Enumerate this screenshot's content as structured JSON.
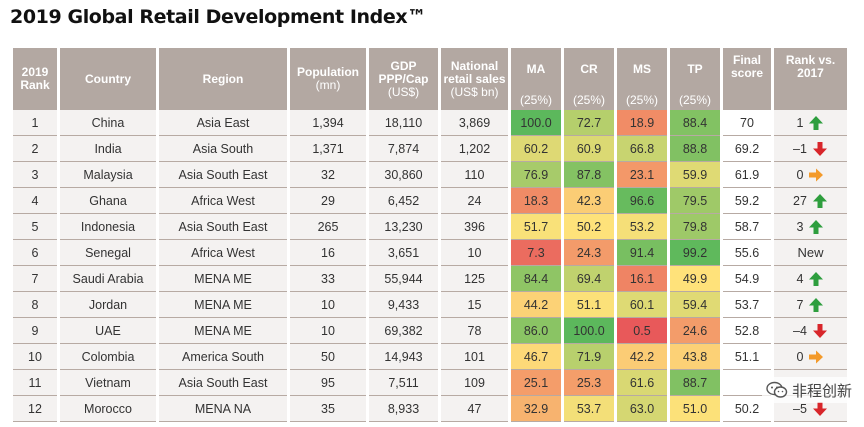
{
  "title": "2019 Global Retail Development Index™",
  "headers": {
    "rank": "2019 Rank",
    "country": "Country",
    "region": "Region",
    "population": "Population",
    "population_unit": "(mn)",
    "gdp": "GDP PPP/Cap",
    "gdp_unit": "(US$)",
    "sales": "National retail sales",
    "sales_unit": "(US$ bn)",
    "ma": "MA",
    "cr": "CR",
    "ms": "MS",
    "tp": "TP",
    "weight": "(25%)",
    "score": "Final score",
    "change": "Rank vs. 2017"
  },
  "colors": {
    "header_bg": "#b3a8a2",
    "row_bg": "#f4f2f1",
    "up": "#2e9e3e",
    "down": "#d8262b",
    "flat": "#f39a2a",
    "scale_low": "#e8585a",
    "scale_mid": "#ffe27a",
    "scale_high": "#5cb85c"
  },
  "chart_data": {
    "type": "table",
    "title": "2019 Global Retail Development Index™",
    "columns": [
      "2019 Rank",
      "Country",
      "Region",
      "Population (mn)",
      "GDP PPP/Cap (US$)",
      "National retail sales (US$ bn)",
      "MA (25%)",
      "CR (25%)",
      "MS (25%)",
      "TP (25%)",
      "Final score",
      "Rank vs. 2017"
    ],
    "rows": [
      {
        "rank": "1",
        "country": "China",
        "region": "Asia East",
        "population": "1,394",
        "gdp": "18,110",
        "sales": "3,869",
        "ma": "100.0",
        "cr": "72.7",
        "ms": "18.9",
        "tp": "88.4",
        "score": "70",
        "change": "1",
        "trend": "up"
      },
      {
        "rank": "2",
        "country": "India",
        "region": "Asia South",
        "population": "1,371",
        "gdp": "7,874",
        "sales": "1,202",
        "ma": "60.2",
        "cr": "60.9",
        "ms": "66.8",
        "tp": "88.8",
        "score": "69.2",
        "change": "–1",
        "trend": "down"
      },
      {
        "rank": "3",
        "country": "Malaysia",
        "region": "Asia South East",
        "population": "32",
        "gdp": "30,860",
        "sales": "110",
        "ma": "76.9",
        "cr": "87.8",
        "ms": "23.1",
        "tp": "59.9",
        "score": "61.9",
        "change": "0",
        "trend": "flat"
      },
      {
        "rank": "4",
        "country": "Ghana",
        "region": "Africa West",
        "population": "29",
        "gdp": "6,452",
        "sales": "24",
        "ma": "18.3",
        "cr": "42.3",
        "ms": "96.6",
        "tp": "79.5",
        "score": "59.2",
        "change": "27",
        "trend": "up"
      },
      {
        "rank": "5",
        "country": "Indonesia",
        "region": "Asia South East",
        "population": "265",
        "gdp": "13,230",
        "sales": "396",
        "ma": "51.7",
        "cr": "50.2",
        "ms": "53.2",
        "tp": "79.8",
        "score": "58.7",
        "change": "3",
        "trend": "up"
      },
      {
        "rank": "6",
        "country": "Senegal",
        "region": "Africa West",
        "population": "16",
        "gdp": "3,651",
        "sales": "10",
        "ma": "7.3",
        "cr": "24.3",
        "ms": "91.4",
        "tp": "99.2",
        "score": "55.6",
        "change": "New",
        "trend": "none"
      },
      {
        "rank": "7",
        "country": "Saudi Arabia",
        "region": "MENA ME",
        "population": "33",
        "gdp": "55,944",
        "sales": "125",
        "ma": "84.4",
        "cr": "69.4",
        "ms": "16.1",
        "tp": "49.9",
        "score": "54.9",
        "change": "4",
        "trend": "up"
      },
      {
        "rank": "8",
        "country": "Jordan",
        "region": "MENA ME",
        "population": "10",
        "gdp": "9,433",
        "sales": "15",
        "ma": "44.2",
        "cr": "51.1",
        "ms": "60.1",
        "tp": "59.4",
        "score": "53.7",
        "change": "7",
        "trend": "up"
      },
      {
        "rank": "9",
        "country": "UAE",
        "region": "MENA ME",
        "population": "10",
        "gdp": "69,382",
        "sales": "78",
        "ma": "86.0",
        "cr": "100.0",
        "ms": "0.5",
        "tp": "24.6",
        "score": "52.8",
        "change": "–4",
        "trend": "down"
      },
      {
        "rank": "10",
        "country": "Colombia",
        "region": "America South",
        "population": "50",
        "gdp": "14,943",
        "sales": "101",
        "ma": "46.7",
        "cr": "71.9",
        "ms": "42.2",
        "tp": "43.8",
        "score": "51.1",
        "change": "0",
        "trend": "flat"
      },
      {
        "rank": "11",
        "country": "Vietnam",
        "region": "Asia South East",
        "population": "95",
        "gdp": "7,511",
        "sales": "109",
        "ma": "25.1",
        "cr": "25.3",
        "ms": "61.6",
        "tp": "88.7",
        "score": "",
        "change": "",
        "trend": "none"
      },
      {
        "rank": "12",
        "country": "Morocco",
        "region": "MENA NA",
        "population": "35",
        "gdp": "8,933",
        "sales": "47",
        "ma": "32.9",
        "cr": "53.7",
        "ms": "63.0",
        "tp": "51.0",
        "score": "50.2",
        "change": "–5",
        "trend": "down"
      }
    ]
  },
  "watermark": {
    "text": "非程创新",
    "icon": "wechat-icon"
  }
}
